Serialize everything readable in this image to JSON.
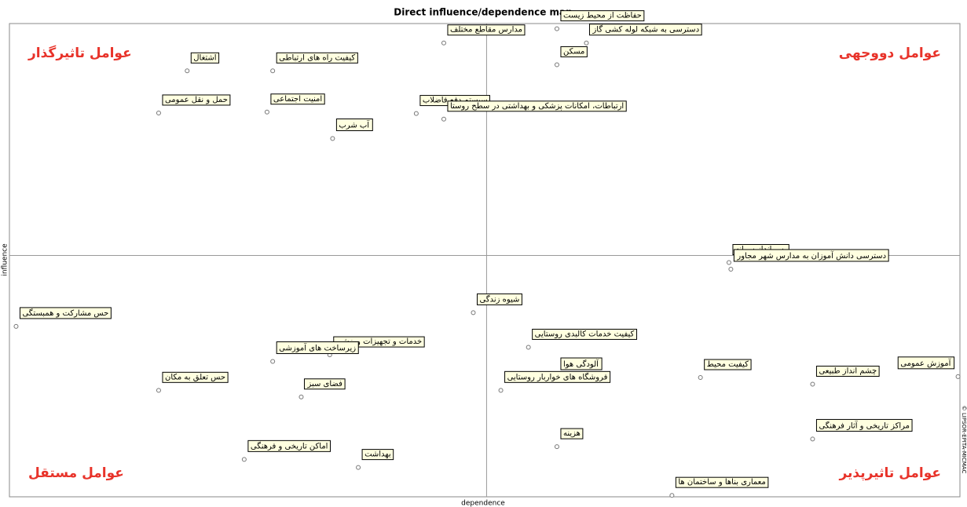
{
  "chart_data": {
    "type": "scatter",
    "title": "Direct influence/dependence map",
    "x_label": "dependence",
    "y_label": "influence",
    "watermark": "© LIPSOR-EPITA-MICMAC",
    "xlim": [
      0,
      100
    ],
    "ylim": [
      0,
      100
    ],
    "reference_lines": {
      "x": 50.2,
      "y": 51
    },
    "point_color": "#777777",
    "label_fill": "#ffffe0",
    "labels": [
      "اشتغال",
      "کیفیت راه های ارتباطی",
      "مدارس مقاطع مختلف",
      "حفاظت از محیط زیست",
      "دسترسی به شبکه لوله کشی گاز",
      "مسکن",
      "حمل و نقل عمومی",
      "امنیت اجتماعی",
      "آب شرب",
      "سیستم دفع فاضلاب",
      "ارتباطات، امکانات پزشکی و بهداشتی در سطح روستا",
      "پس انداز سرانه",
      "دسترسی دانش آموزان به مدارس شهر مجاور",
      "حس مشارکت و همبستگی",
      "شیوه زندگی",
      "کیفیت خدمات کالبدی روستایی",
      "خدمات و تجهیزات ورزشی",
      "زیرساخت های آموزشی",
      "آلودگی هوا",
      "کیفیت محیط",
      "چشم انداز طبیعی",
      "آموزش عمومی",
      "حس تعلق به مکان",
      "فضای سبز",
      "فروشگاه های خواربار روستایی",
      "مراکز تاریخی و آثار فرهنگی",
      "هزینه",
      "اماکن تاریخی و فرهنگی",
      "بهداشت",
      "معماری بناها و ساختمان ها"
    ],
    "x": [
      18.7,
      27.7,
      45.7,
      57.6,
      60.7,
      57.6,
      15.7,
      27.1,
      34.0,
      42.8,
      45.7,
      75.7,
      75.9,
      0.7,
      48.8,
      54.6,
      33.7,
      27.7,
      57.6,
      72.7,
      84.5,
      99.8,
      15.7,
      30.7,
      51.7,
      84.5,
      57.6,
      24.7,
      36.7,
      69.7
    ],
    "y": [
      90.0,
      90.0,
      95.9,
      98.9,
      95.9,
      91.3,
      81.1,
      81.3,
      75.7,
      81.0,
      79.8,
      49.5,
      48.1,
      36.0,
      38.9,
      31.6,
      30.0,
      28.6,
      25.2,
      25.2,
      23.8,
      25.4,
      22.5,
      21.1,
      22.5,
      12.2,
      10.6,
      7.9,
      6.2,
      0.3
    ],
    "annotations": [
      {
        "text": "عوامل تاثیرگذار",
        "corner": "top-left",
        "color": "#e8332a"
      },
      {
        "text": "عوامل دووجهی",
        "corner": "top-right",
        "color": "#e8332a"
      },
      {
        "text": "عوامل مستقل",
        "corner": "bottom-left",
        "color": "#e8332a"
      },
      {
        "text": "عوامل تاثیرپذیر",
        "corner": "bottom-right",
        "color": "#e8332a"
      }
    ]
  }
}
